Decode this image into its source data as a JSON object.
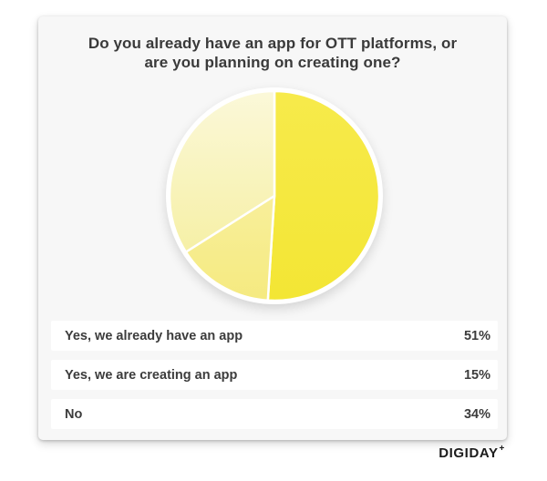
{
  "title": {
    "line1": "Do you already have an app for OTT platforms, or",
    "line2": "are you planning on creating one?"
  },
  "chart_data": {
    "type": "pie",
    "title": "Do you already have an app for OTT platforms, or are you planning on creating one?",
    "labels": [
      "Yes, we already have an app",
      "Yes, we are creating an app",
      "No"
    ],
    "values": [
      51,
      15,
      34
    ],
    "unit": "%",
    "start_angle_deg": 0,
    "direction": "clockwise",
    "legend_position": "bottom-rows",
    "slice_gradients": [
      {
        "from": "#F7EA4B",
        "to": "#F3E634"
      },
      {
        "from": "#F8EF9B",
        "to": "#F5EA80"
      },
      {
        "from": "#FBF8D9",
        "to": "#F6F0A6"
      }
    ],
    "stroke_color": "#FFFFFF"
  },
  "rows": [
    {
      "label": "Yes, we already have an app",
      "value": "51%"
    },
    {
      "label": "Yes, we are creating an app",
      "value": "15%"
    },
    {
      "label": "No",
      "value": "34%"
    }
  ],
  "footer": {
    "brand": "DIGIDAY",
    "brand_plus": "+"
  },
  "theme": {
    "page_bg": "#FFFFFF",
    "card_bg": "#F7F7F7",
    "row_bg": "#FFFFFF",
    "text_color": "#3A3A3A",
    "logo_color": "#1C1C1C"
  }
}
